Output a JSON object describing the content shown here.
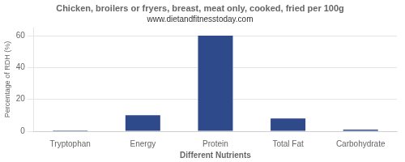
{
  "chart_data": {
    "type": "bar",
    "title": "Chicken, broilers or fryers, breast, meat only, cooked, fried per 100g",
    "subtitle": "www.dietandfitnesstoday.com",
    "categories": [
      "Tryptophan",
      "Energy",
      "Protein",
      "Total Fat",
      "Carbohydrate"
    ],
    "values": [
      0.5,
      10,
      60,
      8,
      1
    ],
    "color": "#2e4a8a",
    "xlabel": "Different Nutrients",
    "ylabel": "Percentage of RDH (%)",
    "ylim": [
      0,
      65
    ],
    "yticks": [
      0,
      20,
      40,
      60
    ],
    "grid": true
  }
}
